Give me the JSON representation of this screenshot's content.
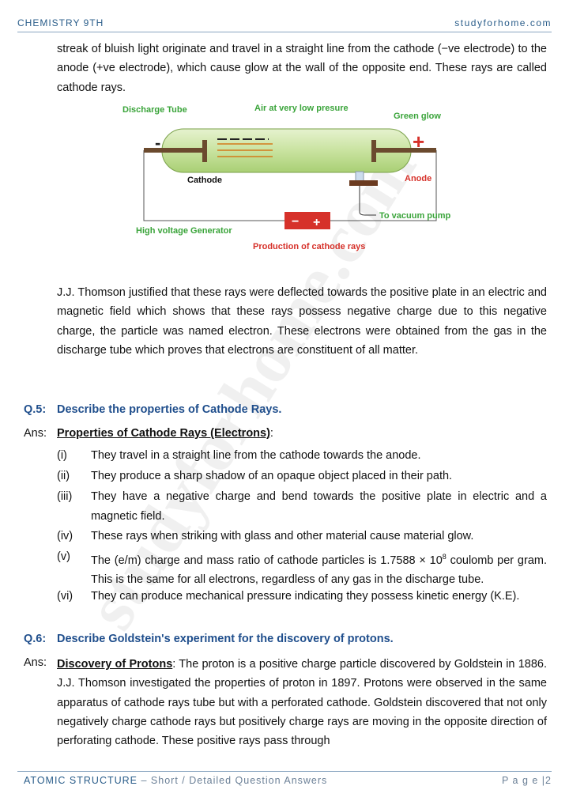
{
  "header": {
    "left": "CHEMISTRY 9TH",
    "right": "studyforhome.com"
  },
  "watermark": "studyforhome.com",
  "intro": "streak of bluish light originate and travel in a straight line from the cathode (−ve electrode) to the anode (+ve electrode), which cause glow at the wall of the opposite end. These rays are called cathode rays.",
  "figure": {
    "labels": {
      "discharge_tube": "Discharge Tube",
      "air": "Air at very low presure",
      "green_glow": "Green glow",
      "minus": "-",
      "plus": "+",
      "cathode": "Cathode",
      "anode": "Anode",
      "vacuum_pump": "To vacuum pump",
      "generator": "High voltage Generator",
      "gen_minus": "−",
      "gen_plus": "+"
    },
    "caption": "Production of cathode rays"
  },
  "paragraph2": "J.J. Thomson justified that these rays were deflected towards the positive plate in an electric and magnetic field which shows that these rays possess negative charge due to this negative charge, the particle was named electron. These electrons were obtained from the gas in the discharge tube which proves that electrons are constituent of all matter.",
  "q5": {
    "number": "Q.5:",
    "question": "Describe the properties of Cathode Rays.",
    "ans_label": "Ans:",
    "heading": "Properties of Cathode Rays (Electrons)",
    "heading_suffix": ":",
    "items": [
      {
        "num": "(i)",
        "text": "They travel in a straight line from the cathode towards the anode."
      },
      {
        "num": "(ii)",
        "text": "They produce a sharp shadow of an opaque object placed in their path."
      },
      {
        "num": "(iii)",
        "text": "They have a negative charge and bend towards the positive plate in electric and a magnetic field."
      },
      {
        "num": "(iv)",
        "text": "These rays when striking with glass and other material cause material glow."
      },
      {
        "num": "(v)",
        "text": "The (e/m) charge and mass ratio of cathode particles is 1.7588 × 10",
        "sup": "8",
        "text_after": " coulomb per gram. This is the same for all electrons, regardless of any gas in the discharge tube."
      },
      {
        "num": "(vi)",
        "text": "They can produce mechanical pressure indicating they possess kinetic energy (K.E)."
      }
    ]
  },
  "q6": {
    "number": "Q.6:",
    "question": "Describe Goldstein's experiment for the discovery of protons.",
    "ans_label": "Ans:",
    "heading": "Discovery of Protons",
    "text": ": The proton is a positive charge particle discovered by Goldstein in 1886. J.J. Thomson investigated the properties of proton in 1897. Protons were observed in the same apparatus of cathode rays tube but with a perforated cathode. Goldstein discovered that not only negatively charge cathode rays but positively charge rays are moving in the opposite direction of perforating cathode. These positive rays pass through"
  },
  "footer": {
    "chapter": "ATOMIC STRUCTURE",
    "subtitle": " – Short / Detailed Question Answers",
    "page_label": "P a g e |",
    "page_number": "2"
  }
}
